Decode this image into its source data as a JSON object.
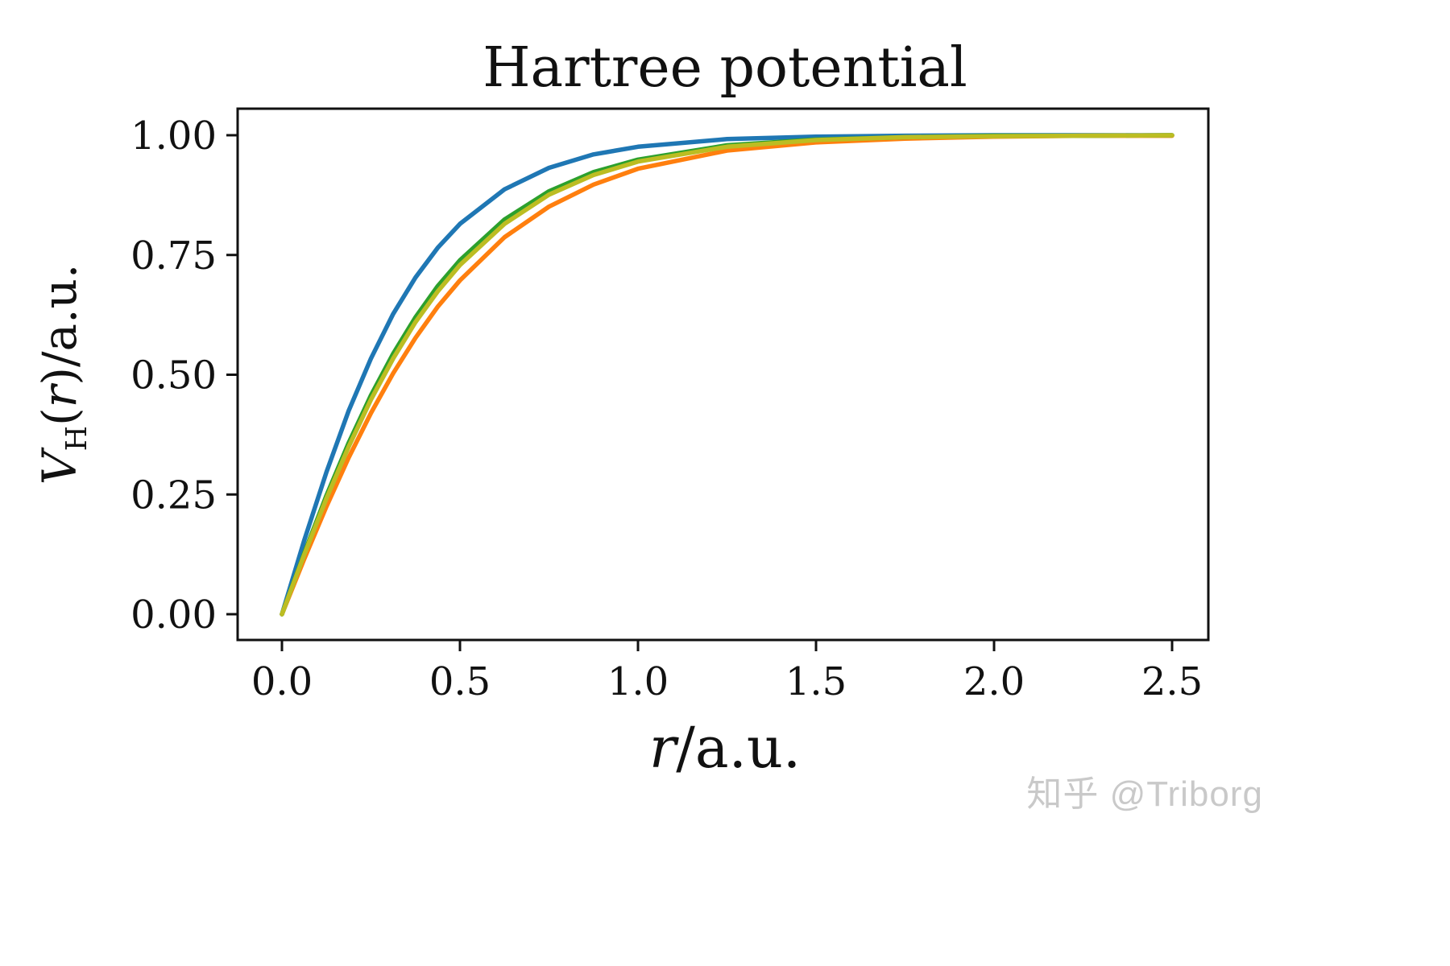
{
  "chart_data": {
    "type": "line",
    "title": "Hartree potential",
    "xlabel": "r/a.u.",
    "ylabel": "V_H(r)/a.u.",
    "xlim": [
      0,
      2.5
    ],
    "ylim": [
      0,
      1.0
    ],
    "grid": false,
    "legend": "none",
    "xticks": {
      "values": [
        0,
        0.5,
        1.0,
        1.5,
        2.0,
        2.5
      ],
      "labels": [
        "0.0",
        "0.5",
        "1.0",
        "1.5",
        "2.0",
        "2.5"
      ]
    },
    "yticks": {
      "values": [
        0,
        0.25,
        0.5,
        0.75,
        1.0
      ],
      "labels": [
        "0.00",
        "0.25",
        "0.50",
        "0.75",
        "1.00"
      ]
    },
    "x": [
      0,
      0.0625,
      0.125,
      0.1875,
      0.25,
      0.3125,
      0.375,
      0.4375,
      0.5,
      0.625,
      0.75,
      0.875,
      1.0,
      1.25,
      1.5,
      1.75,
      2.0,
      2.25,
      2.5
    ],
    "series": [
      {
        "name": "blue",
        "color": "#1f77b4",
        "values": [
          0,
          0.154,
          0.297,
          0.425,
          0.534,
          0.627,
          0.703,
          0.765,
          0.815,
          0.887,
          0.932,
          0.96,
          0.976,
          0.992,
          0.997,
          0.999,
          1.0,
          1.0,
          1.0
        ]
      },
      {
        "name": "orange",
        "color": "#ff7f0e",
        "values": [
          0,
          0.115,
          0.225,
          0.327,
          0.42,
          0.503,
          0.577,
          0.642,
          0.697,
          0.787,
          0.851,
          0.897,
          0.93,
          0.968,
          0.985,
          0.993,
          0.997,
          0.999,
          0.999
        ]
      },
      {
        "name": "green",
        "color": "#2ca02c",
        "values": [
          0,
          0.127,
          0.248,
          0.358,
          0.457,
          0.544,
          0.62,
          0.685,
          0.739,
          0.824,
          0.883,
          0.923,
          0.949,
          0.979,
          0.991,
          0.996,
          0.999,
          0.999,
          1.0
        ]
      },
      {
        "name": "olive",
        "color": "#bcbd22",
        "values": [
          0,
          0.124,
          0.242,
          0.35,
          0.448,
          0.534,
          0.61,
          0.674,
          0.729,
          0.815,
          0.876,
          0.917,
          0.945,
          0.976,
          0.99,
          0.996,
          0.998,
          0.999,
          1.0
        ]
      }
    ]
  },
  "watermark": {
    "text": "知乎 @Triborg"
  }
}
